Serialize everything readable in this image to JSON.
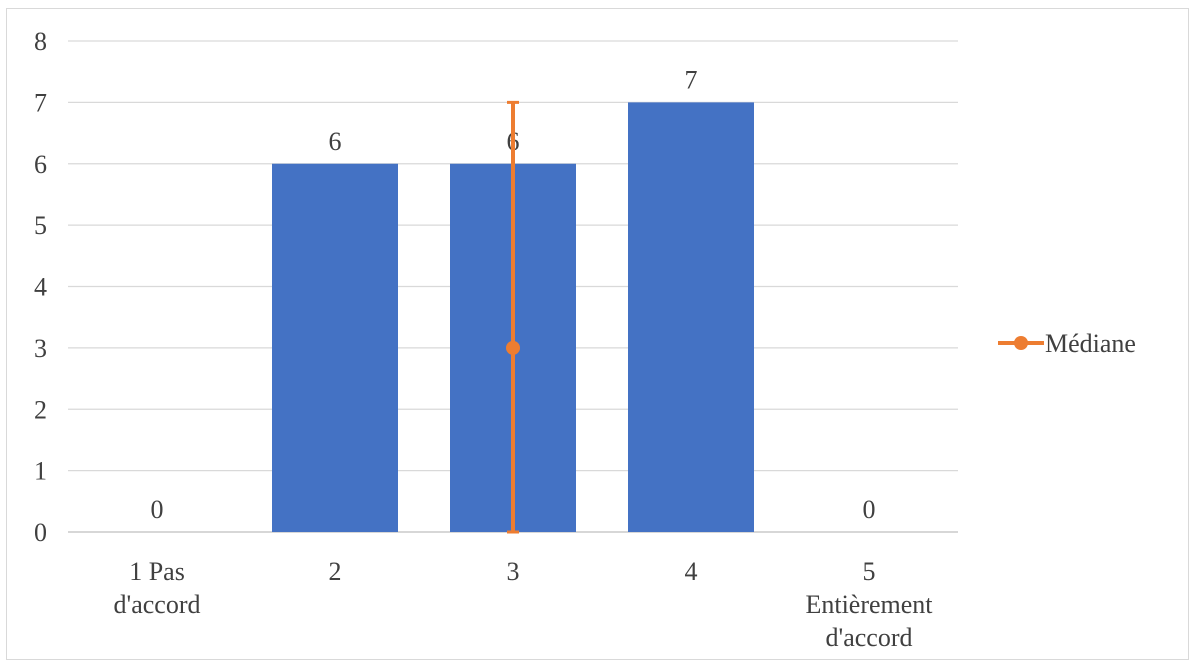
{
  "chart_data": {
    "type": "bar",
    "categories": [
      [
        "1 Pas",
        "d'accord"
      ],
      [
        "2"
      ],
      [
        "3"
      ],
      [
        "4"
      ],
      [
        "5",
        "Entièrement",
        "d'accord"
      ]
    ],
    "series": [
      {
        "values": [
          0,
          6,
          6,
          7,
          0
        ],
        "color": "#4472c4",
        "data_labels": true
      }
    ],
    "median": {
      "name": "Médiane",
      "category_index": 2,
      "low": 0,
      "mid": 3,
      "high": 7,
      "color": "#ed7d31"
    },
    "ylim": [
      0,
      8
    ],
    "yticks": [
      0,
      1,
      2,
      3,
      4,
      5,
      6,
      7,
      8
    ],
    "grid": true,
    "legend_position": "right"
  }
}
